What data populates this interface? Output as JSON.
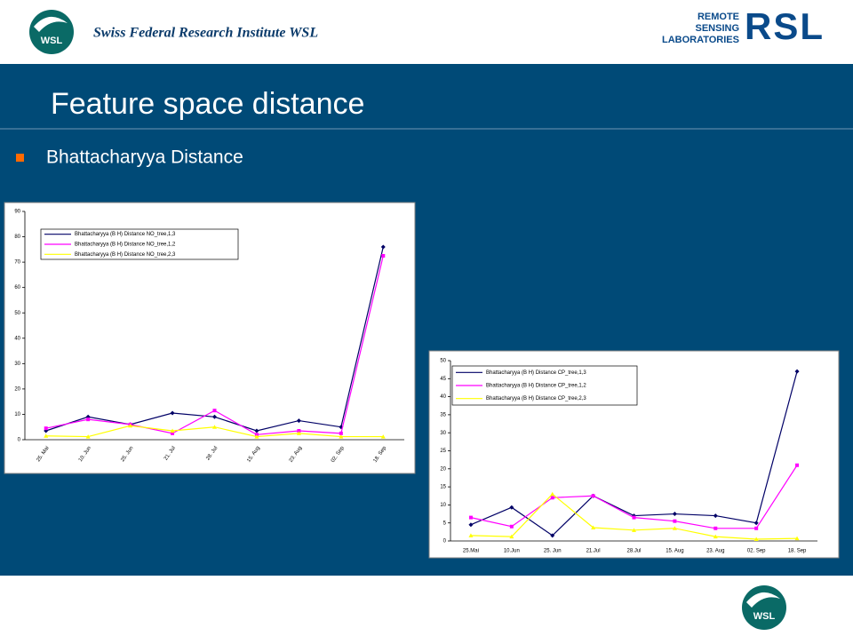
{
  "header": {
    "institute": "Swiss Federal Research Institute WSL",
    "logo_left": "WSL",
    "logo_right_lines": [
      "REMOTE",
      "SENSING",
      "LABORATORIES"
    ],
    "logo_right_mark": "RSL"
  },
  "title": "Feature space distance",
  "bullet": "Bhattacharyya Distance",
  "footer": {
    "logo": "WSL"
  },
  "chart_data": [
    {
      "type": "line",
      "categories": [
        "25. Mai",
        "10. Jun",
        "25. Jun",
        "21. Jul",
        "28. Jul",
        "15. Aug",
        "23. Aug",
        "02. Sep",
        "18. Sep"
      ],
      "ylim": [
        0,
        90
      ],
      "yticks": [
        0,
        10,
        20,
        30,
        40,
        50,
        60,
        70,
        80,
        90
      ],
      "series": [
        {
          "name": "Bhattacharyya (B H) Distance NO_tree,1,3",
          "color": "#000066",
          "values": [
            3.5,
            9,
            6,
            10.5,
            9,
            3.5,
            7.5,
            5,
            76
          ]
        },
        {
          "name": "Bhattacharyya (B H) Distance NO_tree,1,2",
          "color": "#ff00ff",
          "values": [
            4.5,
            8,
            6,
            2.5,
            11.5,
            2,
            3.5,
            2.5,
            72.5
          ]
        },
        {
          "name": "Bhattacharyya (B H) Distance NO_tree,2,3",
          "color": "#ffff00",
          "values": [
            1.5,
            1.2,
            5.5,
            3.5,
            5,
            1.2,
            2.5,
            1.2,
            1.2
          ]
        }
      ]
    },
    {
      "type": "line",
      "categories": [
        "25.Mai",
        "10.Jun",
        "25. Jun",
        "21.Jul",
        "28.Jul",
        "15. Aug",
        "23. Aug",
        "02. Sep",
        "18. Sep"
      ],
      "ylim": [
        0,
        50
      ],
      "yticks": [
        0,
        5,
        10,
        15,
        20,
        25,
        30,
        35,
        40,
        45,
        50
      ],
      "series": [
        {
          "name": "Bhattacharyya (B H) Distance CP_tree,1,3",
          "color": "#000066",
          "values": [
            4.5,
            9.3,
            1.5,
            12.5,
            7,
            7.5,
            7,
            5,
            47
          ]
        },
        {
          "name": "Bhattacharyya (B H) Distance CP_tree,1,2",
          "color": "#ff00ff",
          "values": [
            6.5,
            4,
            12,
            12.5,
            6.5,
            5.5,
            3.5,
            3.5,
            21
          ]
        },
        {
          "name": "Bhattacharyya (B H) Distance CP_tree,2,3",
          "color": "#ffff00",
          "values": [
            1.5,
            1.2,
            13,
            3.7,
            3,
            3.5,
            1.2,
            0.5,
            0.7
          ]
        }
      ]
    }
  ]
}
